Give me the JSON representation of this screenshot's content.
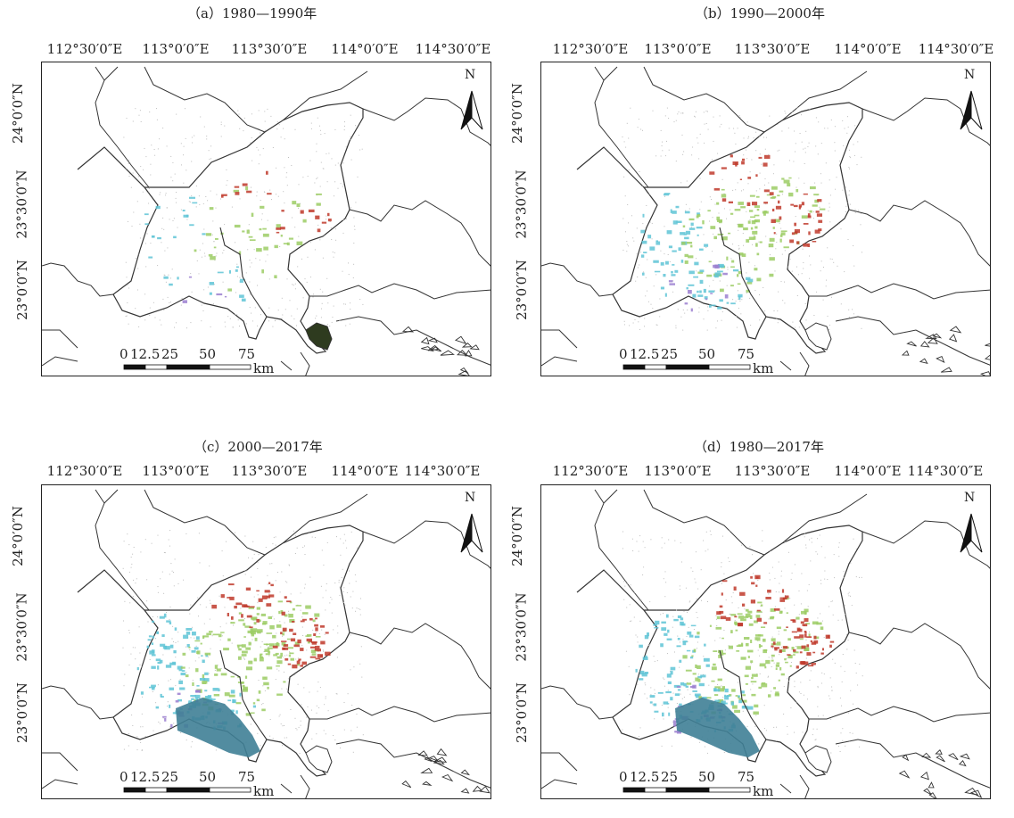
{
  "panels": [
    {
      "title": "（a）1980—1990年",
      "variant": 0
    },
    {
      "title": "（b）1990—2000年",
      "variant": 1
    },
    {
      "title": "（c）2000—2017年",
      "variant": 2
    },
    {
      "title": "（d）1980—2017年",
      "variant": 3
    }
  ],
  "x_ticks": [
    "112°30′0″E",
    "113°0′0″E",
    "113°30′0″E",
    "114°0′0″E",
    "114°30′0″E"
  ],
  "y_ticks": [
    "24°0′0″N",
    "23°30′0″N",
    "23°0′0″N"
  ],
  "scale_bar": {
    "labels": [
      "0",
      "12.5",
      "25",
      "50",
      "75"
    ],
    "unit": "km"
  },
  "north_label": "N",
  "colors": {
    "boundary": "#333333",
    "cyan": "#5fc4d6",
    "green": "#9ccc65",
    "red": "#c0392b",
    "teal": "#3f7f96",
    "purple": "#9b7fd0",
    "dark_green": "#2e3b1f"
  }
}
